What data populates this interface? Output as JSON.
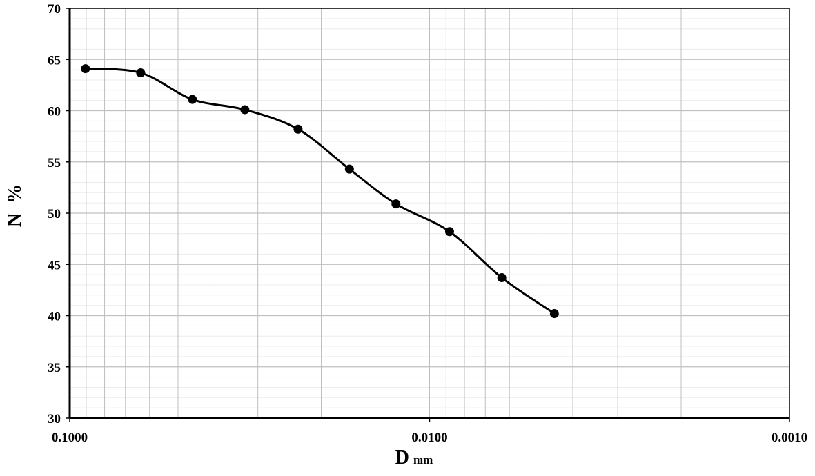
{
  "chart_data": {
    "type": "line",
    "title": "",
    "xlabel": "D",
    "xlabel_unit": "mm",
    "ylabel": "N  %",
    "x_scale": "log",
    "x_reversed": true,
    "xlim": [
      0.1,
      0.001
    ],
    "ylim": [
      30,
      70
    ],
    "grid": true,
    "smooth": true,
    "marker": "circle",
    "line_color": "#000000",
    "grid_color": "#bfbfbf",
    "x_tick_labels": [
      "0.1000",
      "0.0100",
      "0.0010"
    ],
    "y_tick_labels": [
      "30",
      "35",
      "40",
      "45",
      "50",
      "55",
      "60",
      "65",
      "70"
    ],
    "series": [
      {
        "x": [
          0.0904,
          0.0635,
          0.0456,
          0.0326,
          0.0232,
          0.0167,
          0.0124,
          0.0088,
          0.0063,
          0.0045
        ],
        "y": [
          64.1,
          63.7,
          61.1,
          60.1,
          58.2,
          54.3,
          50.9,
          48.2,
          43.7,
          40.2
        ]
      }
    ]
  }
}
